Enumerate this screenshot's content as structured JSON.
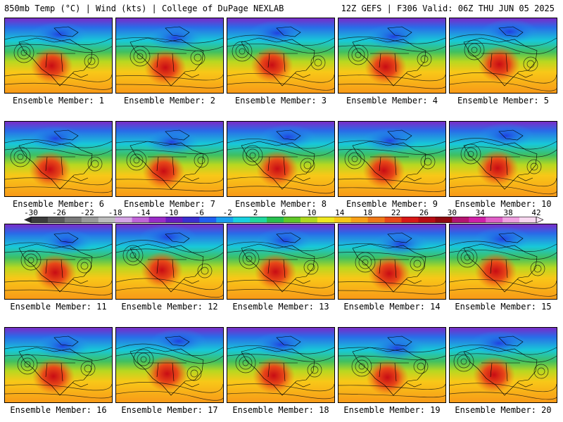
{
  "header": {
    "title": "850mb Temp (°C) | Wind (kts) | College of DuPage NEXLAB",
    "run": "12Z GEFS | F306 Valid: 06Z THU JUN 05 2025"
  },
  "members": [
    "Ensemble Member: 1",
    "Ensemble Member: 2",
    "Ensemble Member: 3",
    "Ensemble Member: 4",
    "Ensemble Member: 5",
    "Ensemble Member: 6",
    "Ensemble Member: 7",
    "Ensemble Member: 8",
    "Ensemble Member: 9",
    "Ensemble Member: 10",
    "Ensemble Member: 11",
    "Ensemble Member: 12",
    "Ensemble Member: 13",
    "Ensemble Member: 14",
    "Ensemble Member: 15",
    "Ensemble Member: 16",
    "Ensemble Member: 17",
    "Ensemble Member: 18",
    "Ensemble Member: 19",
    "Ensemble Member: 20"
  ],
  "colorbar": {
    "labels": [
      "-30",
      "-26",
      "-22",
      "-18",
      "-14",
      "-10",
      "-6",
      "-2",
      "2",
      "6",
      "10",
      "14",
      "18",
      "22",
      "26",
      "30",
      "34",
      "38",
      "42"
    ],
    "colors": [
      "#3c3c3c",
      "#5a5a5a",
      "#7a7a7a",
      "#9a9a9a",
      "#bdbdbd",
      "#d6a6e6",
      "#c064d8",
      "#9a2cc8",
      "#6a1cc0",
      "#3a30d0",
      "#2060f0",
      "#1aa0f0",
      "#18d0e0",
      "#20d8a0",
      "#28c050",
      "#60c828",
      "#b0d820",
      "#f0e820",
      "#f8c818",
      "#f8a018",
      "#f07818",
      "#e84818",
      "#d81818",
      "#b80c14",
      "#900810",
      "#b41470",
      "#d020a8",
      "#e060c8",
      "#f0a0e0",
      "#f8d8f0"
    ]
  }
}
